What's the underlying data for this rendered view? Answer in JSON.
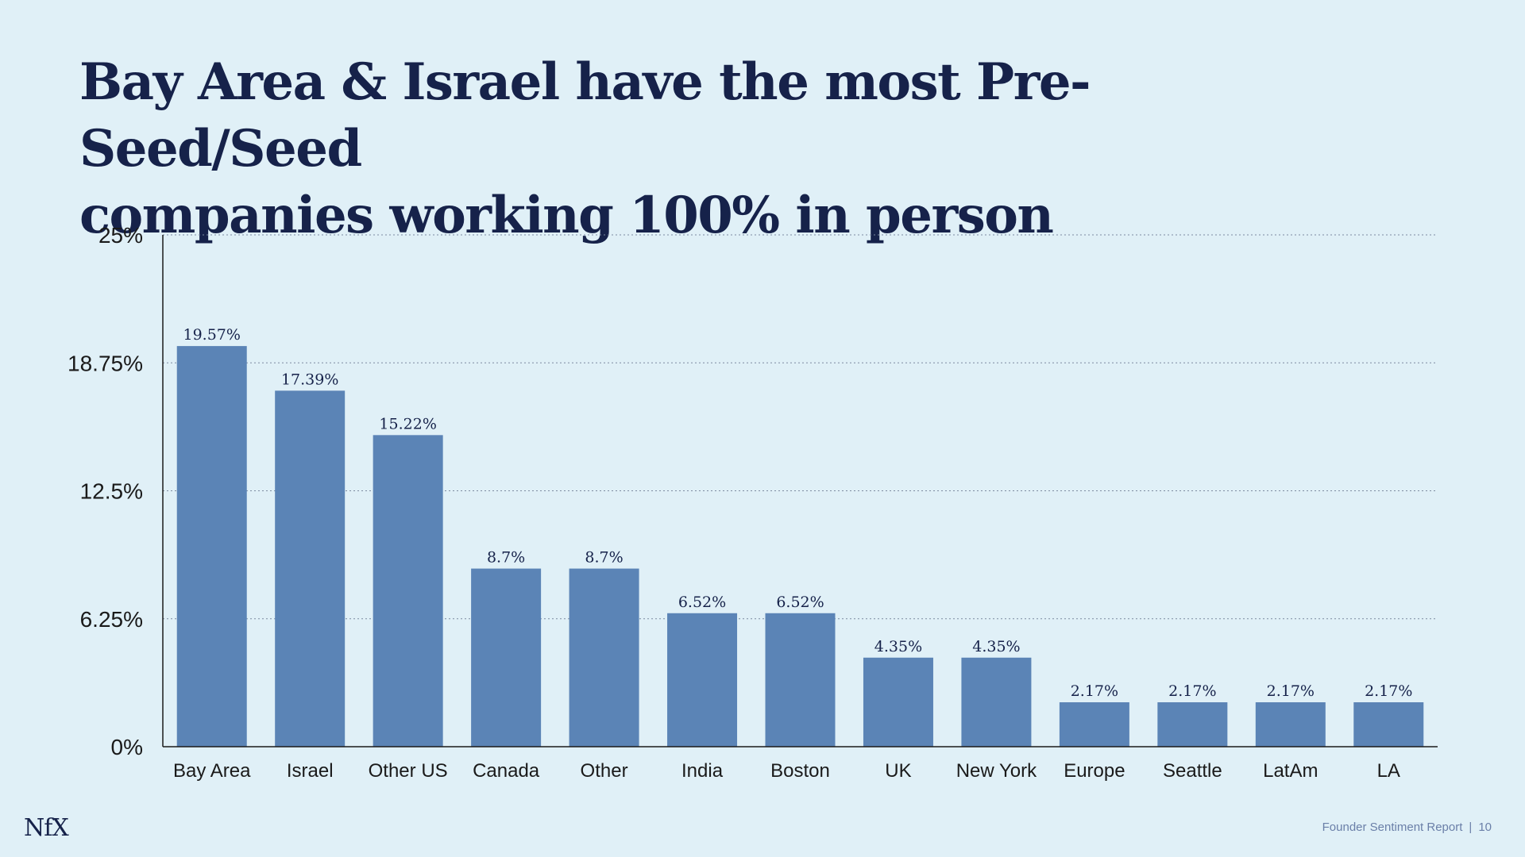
{
  "title": {
    "line1": "Bay Area & Israel have the most Pre-Seed/Seed",
    "line2": "companies working 100% in person"
  },
  "chart_data": {
    "type": "bar",
    "categories": [
      "Bay Area",
      "Israel",
      "Other US",
      "Canada",
      "Other",
      "India",
      "Boston",
      "UK",
      "New York",
      "Europe",
      "Seattle",
      "LatAm",
      "LA"
    ],
    "values": [
      19.57,
      17.39,
      15.22,
      8.7,
      8.7,
      6.52,
      6.52,
      4.35,
      4.35,
      2.17,
      2.17,
      2.17,
      2.17
    ],
    "value_labels": [
      "19.57%",
      "17.39%",
      "15.22%",
      "8.7%",
      "8.7%",
      "6.52%",
      "6.52%",
      "4.35%",
      "4.35%",
      "2.17%",
      "2.17%",
      "2.17%",
      "2.17%"
    ],
    "ylim": [
      0,
      25
    ],
    "y_ticks": [
      0,
      6.25,
      12.5,
      18.75,
      25
    ],
    "y_tick_labels": [
      "0%",
      "6.25%",
      "12.5%",
      "18.75%",
      "25%"
    ],
    "grid": "dotted horizontal",
    "bar_color": "#5b84b6"
  },
  "logo": "NfX",
  "footer": {
    "report": "Founder Sentiment Report",
    "page": "10"
  },
  "colors": {
    "background": "#e0f0f7",
    "title": "#16224a",
    "bar": "#5b84b6",
    "footer": "#6a7fa8"
  }
}
